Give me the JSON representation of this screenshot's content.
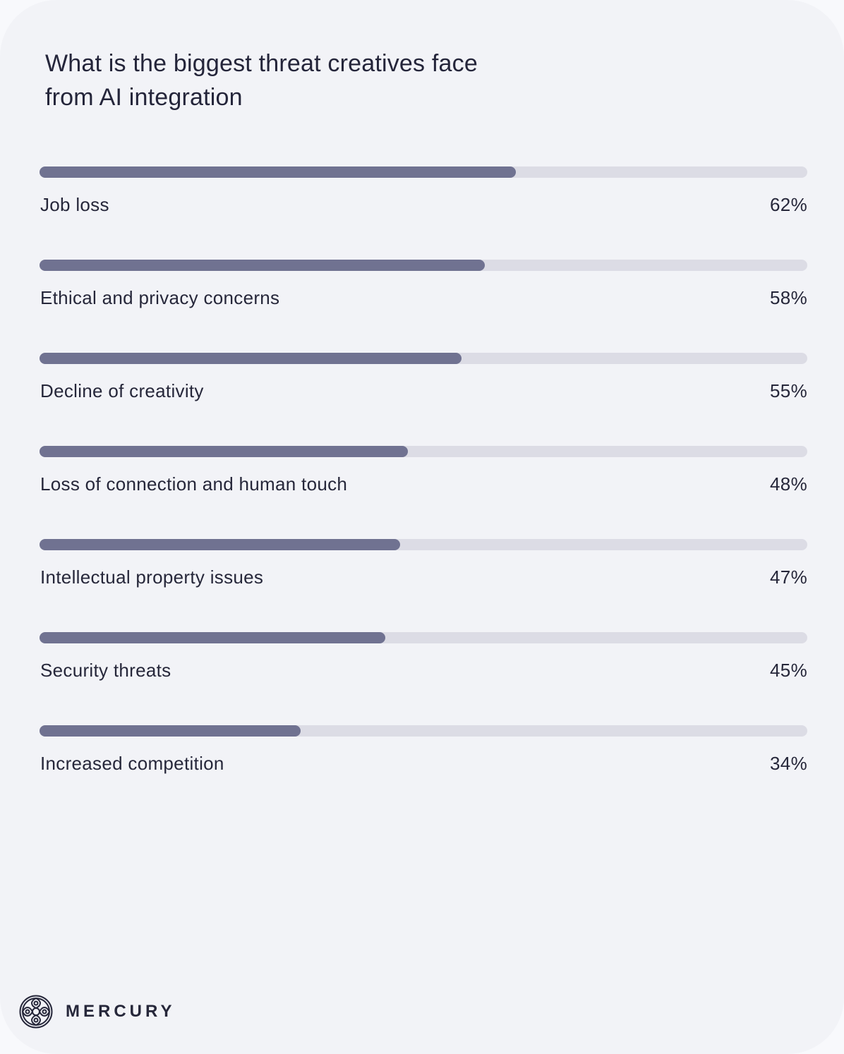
{
  "title": "What is the biggest threat creatives face from AI integration",
  "brand": {
    "name": "MERCURY",
    "icon": "mercury-logo-icon"
  },
  "colors": {
    "fill": "#707291",
    "track": "#dcdce5",
    "background": "#f2f3f7",
    "text": "#26273a"
  },
  "rows": [
    {
      "label": "Job loss",
      "value": "62%"
    },
    {
      "label": "Ethical and privacy concerns",
      "value": "58%"
    },
    {
      "label": "Decline of creativity",
      "value": "55%"
    },
    {
      "label": "Loss of connection and human touch",
      "value": "48%"
    },
    {
      "label": "Intellectual property issues",
      "value": "47%"
    },
    {
      "label": "Security threats",
      "value": "45%"
    },
    {
      "label": "Increased competition",
      "value": "34%"
    }
  ],
  "chart_data": {
    "type": "bar",
    "orientation": "horizontal",
    "title": "What is the biggest threat creatives face from AI integration",
    "categories": [
      "Job loss",
      "Ethical and privacy concerns",
      "Decline of creativity",
      "Loss of connection and human touch",
      "Intellectual property issues",
      "Security threats",
      "Increased competition"
    ],
    "values": [
      62,
      58,
      55,
      48,
      47,
      45,
      34
    ],
    "unit": "%",
    "xlim": [
      0,
      100
    ],
    "xlabel": "",
    "ylabel": "",
    "grid": false,
    "legend": null
  }
}
